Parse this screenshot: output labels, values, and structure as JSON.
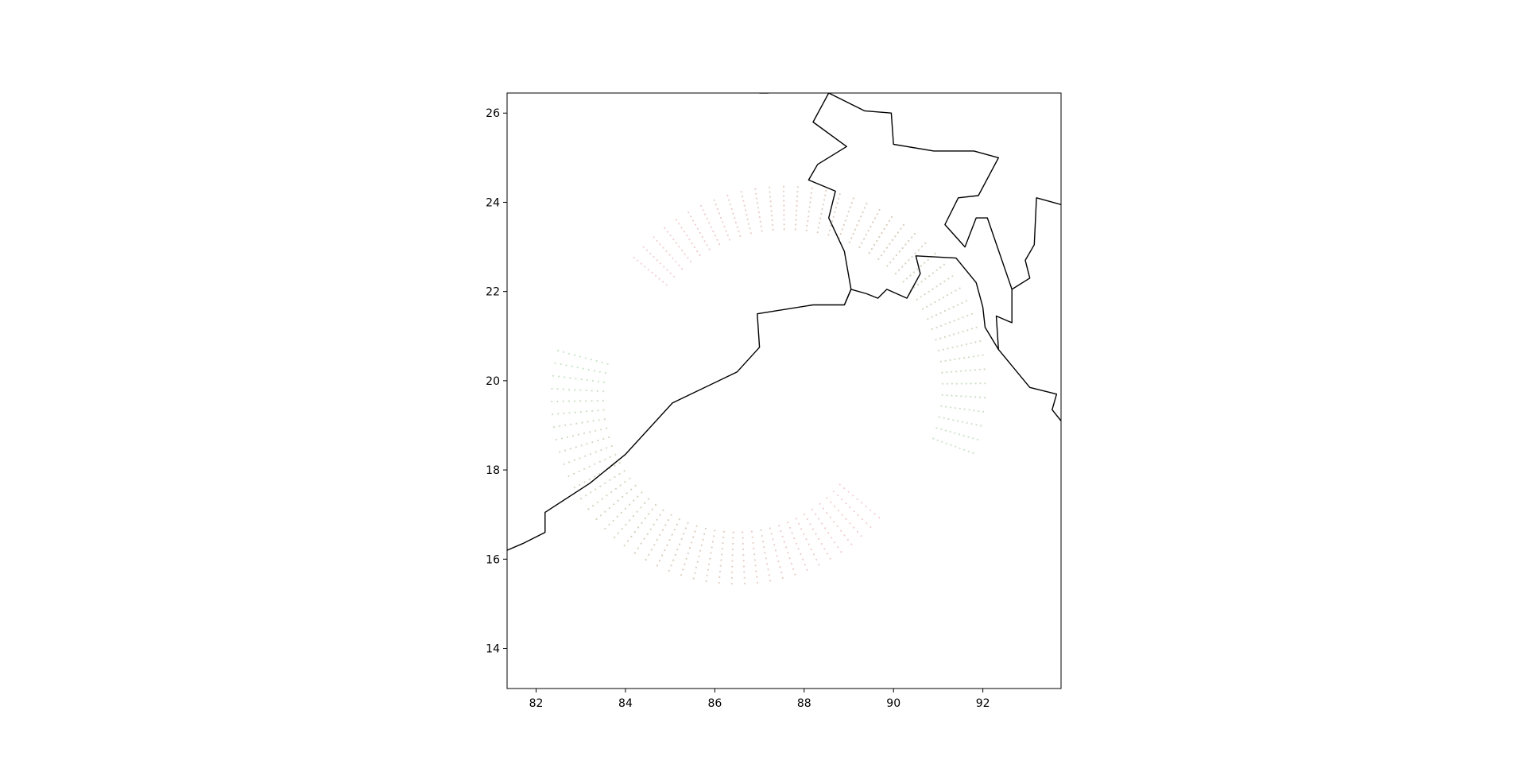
{
  "chart_data": {
    "type": "scatter",
    "title": "",
    "xlabel": "",
    "ylabel": "",
    "xlim": [
      81.35,
      93.75
    ],
    "ylim": [
      13.1,
      26.45
    ],
    "x_ticks": [
      82,
      84,
      86,
      88,
      90,
      92
    ],
    "y_ticks": [
      14,
      16,
      18,
      20,
      22,
      24,
      26
    ],
    "x_tick_labels": [
      "82",
      "84",
      "86",
      "88",
      "90",
      "92"
    ],
    "y_tick_labels": [
      "14",
      "16",
      "18",
      "20",
      "22",
      "24",
      "26"
    ],
    "grid": false,
    "legend": "none",
    "coastline": {
      "color": "#000000",
      "segments": [
        [
          [
            81.35,
            16.2
          ],
          [
            81.7,
            16.35
          ],
          [
            82.2,
            16.6
          ],
          [
            82.2,
            17.05
          ],
          [
            83.2,
            17.7
          ],
          [
            84.0,
            18.35
          ],
          [
            85.05,
            19.5
          ],
          [
            86.5,
            20.2
          ],
          [
            87.0,
            20.75
          ],
          [
            86.95,
            21.5
          ],
          [
            88.2,
            21.7
          ],
          [
            88.9,
            21.7
          ],
          [
            89.05,
            22.05
          ],
          [
            89.4,
            21.95
          ],
          [
            89.65,
            21.85
          ],
          [
            89.85,
            22.05
          ],
          [
            90.3,
            21.85
          ],
          [
            90.6,
            22.4
          ],
          [
            90.5,
            22.8
          ],
          [
            91.4,
            22.75
          ],
          [
            91.85,
            22.2
          ],
          [
            92.0,
            21.65
          ],
          [
            92.05,
            21.2
          ],
          [
            92.35,
            20.7
          ],
          [
            93.05,
            19.85
          ],
          [
            93.65,
            19.7
          ],
          [
            93.55,
            19.35
          ],
          [
            93.75,
            19.1
          ]
        ],
        [
          [
            88.9,
            21.7
          ],
          [
            89.05,
            22.05
          ],
          [
            88.9,
            22.9
          ],
          [
            88.55,
            23.65
          ],
          [
            88.7,
            24.25
          ],
          [
            88.1,
            24.5
          ],
          [
            88.3,
            24.85
          ],
          [
            88.95,
            25.25
          ],
          [
            88.2,
            25.8
          ],
          [
            88.55,
            26.45
          ]
        ],
        [
          [
            88.55,
            26.45
          ],
          [
            89.35,
            26.05
          ],
          [
            89.95,
            26.0
          ],
          [
            90.0,
            25.3
          ],
          [
            90.9,
            25.15
          ],
          [
            91.8,
            25.15
          ],
          [
            92.35,
            25.0
          ],
          [
            91.9,
            24.15
          ],
          [
            91.45,
            24.1
          ],
          [
            91.15,
            23.5
          ],
          [
            91.6,
            23.0
          ],
          [
            91.85,
            23.65
          ],
          [
            92.1,
            23.65
          ],
          [
            92.65,
            22.05
          ],
          [
            93.05,
            22.3
          ],
          [
            92.95,
            22.7
          ],
          [
            93.15,
            23.05
          ],
          [
            93.2,
            24.1
          ],
          [
            93.75,
            23.95
          ]
        ],
        [
          [
            92.35,
            20.7
          ],
          [
            92.3,
            21.45
          ],
          [
            92.65,
            21.3
          ],
          [
            92.65,
            22.05
          ]
        ],
        [
          [
            87.2,
            26.45
          ],
          [
            87.0,
            26.45
          ]
        ]
      ]
    },
    "swaths": [
      {
        "center": [
          87.6,
          19.9
        ],
        "inner_radius": 3.5,
        "outer_radius": 4.45,
        "start_angle_deg": 140,
        "end_angle_deg": -20,
        "radial_rows": 10,
        "points_per_row": 40,
        "color_start": "#f4c7cc",
        "color_mid": "#d4c4b0",
        "color_end": "#bfe0bf"
      },
      {
        "center": [
          86.5,
          19.6
        ],
        "inner_radius": 3.0,
        "outer_radius": 4.15,
        "start_angle_deg": 165,
        "end_angle_deg": 320,
        "radial_rows": 10,
        "points_per_row": 40,
        "color_start": "#bfe0bf",
        "color_mid": "#d4c4b0",
        "color_end": "#f4c7cc"
      }
    ]
  }
}
